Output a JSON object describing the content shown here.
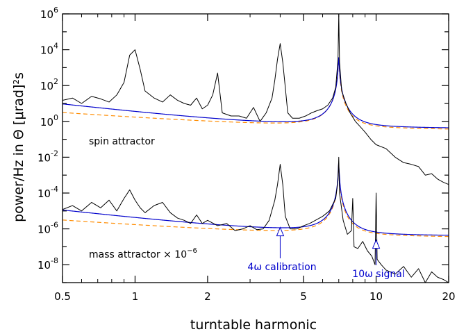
{
  "chart_data": {
    "type": "line",
    "xlabel": "turntable harmonic",
    "ylabel": "power/Hz in Θ [μrad]²s",
    "xscale": "log",
    "yscale": "log",
    "xlim": [
      0.5,
      20
    ],
    "ylim": [
      1e-09,
      1000000.0
    ],
    "x_ticks": [
      {
        "value": 0.5,
        "label": "0.5"
      },
      {
        "value": 1,
        "label": "1"
      },
      {
        "value": 2,
        "label": "2"
      },
      {
        "value": 5,
        "label": "5"
      },
      {
        "value": 10,
        "label": "10"
      },
      {
        "value": 20,
        "label": "20"
      }
    ],
    "y_ticks": [
      {
        "exp": -8,
        "label": "10",
        "sup": "-8"
      },
      {
        "exp": -6,
        "label": "10",
        "sup": "-6"
      },
      {
        "exp": -4,
        "label": "10",
        "sup": "-4"
      },
      {
        "exp": -2,
        "label": "10",
        "sup": "-2"
      },
      {
        "exp": 0,
        "label": "10",
        "sup": "0"
      },
      {
        "exp": 2,
        "label": "10",
        "sup": "2"
      },
      {
        "exp": 4,
        "label": "10",
        "sup": "4"
      },
      {
        "exp": 6,
        "label": "10",
        "sup": "6"
      }
    ],
    "grid": false,
    "colors": {
      "data": "#000000",
      "fit": "#0000cc",
      "floor": "#ff8c00",
      "annotation": "#0000cc"
    },
    "series": [
      {
        "label": "spin attractor",
        "color": "#000000",
        "x": [
          0.5,
          0.55,
          0.6,
          0.66,
          0.72,
          0.78,
          0.84,
          0.9,
          0.95,
          1.0,
          1.05,
          1.1,
          1.2,
          1.3,
          1.4,
          1.5,
          1.6,
          1.7,
          1.8,
          1.9,
          2.0,
          2.1,
          2.2,
          2.3,
          2.5,
          2.7,
          2.9,
          3.1,
          3.3,
          3.5,
          3.7,
          3.8,
          3.9,
          4.0,
          4.1,
          4.2,
          4.3,
          4.5,
          4.8,
          5.1,
          5.4,
          5.7,
          6.0,
          6.3,
          6.6,
          6.8,
          6.95,
          7.0,
          7.05,
          7.2,
          7.5,
          7.8,
          8.2,
          8.6,
          9.0,
          9.5,
          10,
          11,
          12,
          13,
          14,
          15,
          16,
          17,
          18,
          19,
          20
        ],
        "y": [
          15,
          20,
          10,
          25,
          18,
          12,
          30,
          150,
          5000,
          10000,
          800,
          50,
          20,
          12,
          30,
          15,
          10,
          8,
          20,
          5,
          8,
          30,
          500,
          3,
          2,
          2,
          1.5,
          6,
          1,
          3,
          20,
          200,
          3000,
          22000,
          2000,
          80,
          3,
          1.5,
          1.5,
          2,
          3,
          4,
          5,
          8,
          20,
          80,
          3000,
          10000000,
          2000,
          50,
          10,
          3,
          1,
          0.5,
          0.25,
          0.1,
          0.05,
          0.03,
          0.01,
          0.005,
          0.004,
          0.003,
          0.001,
          0.0012,
          0.0006,
          0.0004,
          0.0003
        ]
      },
      {
        "label": "mass attractor × 10",
        "label_sup": "−6",
        "color": "#000000",
        "x": [
          0.5,
          0.55,
          0.6,
          0.66,
          0.72,
          0.78,
          0.84,
          0.9,
          0.95,
          1.0,
          1.05,
          1.1,
          1.2,
          1.3,
          1.4,
          1.5,
          1.6,
          1.7,
          1.8,
          1.9,
          2.0,
          2.2,
          2.4,
          2.6,
          2.8,
          3.0,
          3.2,
          3.4,
          3.6,
          3.8,
          3.9,
          4.0,
          4.1,
          4.2,
          4.4,
          4.7,
          5.0,
          5.3,
          5.6,
          6.0,
          6.4,
          6.8,
          6.95,
          7.0,
          7.05,
          7.3,
          7.6,
          7.9,
          8.0,
          8.1,
          8.4,
          8.8,
          9.2,
          9.6,
          9.9,
          10.0,
          10.1,
          10.5,
          11,
          12,
          13,
          14,
          15,
          16,
          17,
          18,
          19,
          20
        ],
        "y": [
          1.2e-05,
          2e-05,
          1e-05,
          3e-05,
          1.5e-05,
          4e-05,
          1e-05,
          5e-05,
          0.00015,
          4e-05,
          1.5e-05,
          8e-06,
          2e-05,
          3e-05,
          8e-06,
          4e-06,
          3e-06,
          2e-06,
          6e-06,
          2e-06,
          3e-06,
          1.5e-06,
          2e-06,
          8e-07,
          1e-06,
          1.5e-06,
          9e-07,
          1e-06,
          3e-06,
          4e-05,
          0.0003,
          0.004,
          0.0003,
          5e-06,
          1e-06,
          1e-06,
          1.5e-06,
          2e-06,
          3e-06,
          5e-06,
          1e-05,
          5e-05,
          0.0005,
          0.01,
          0.0001,
          3e-06,
          5e-07,
          8e-07,
          5e-05,
          1e-07,
          8e-08,
          2e-07,
          6e-08,
          3e-08,
          1e-08,
          0.0001,
          2e-08,
          1e-08,
          5e-09,
          3e-09,
          8e-09,
          2e-09,
          6e-09,
          1e-09,
          4e-09,
          2e-09,
          1.5e-09,
          1e-09
        ]
      }
    ],
    "annotations": [
      {
        "text": "4ω calibration",
        "x": 4,
        "arrow_tip_y": 1e-06
      },
      {
        "text": "10ω signal",
        "x": 10,
        "arrow_tip_y": 2e-07
      }
    ]
  }
}
